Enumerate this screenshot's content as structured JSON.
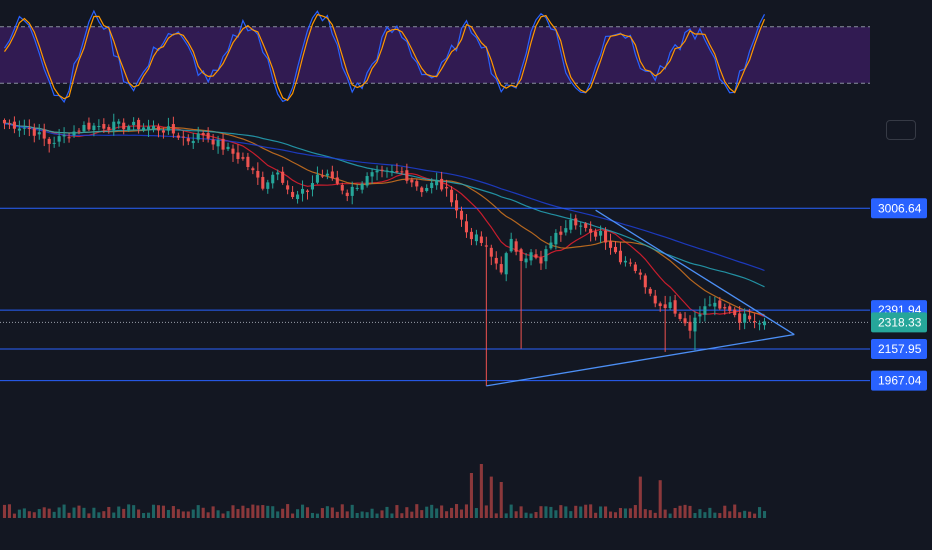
{
  "colors": {
    "background": "#131722",
    "bull": "#26a69a",
    "bear": "#ef5350",
    "level_line": "#2962ff",
    "trendline": "#4c8ff5",
    "stoch_k": "#2962ff",
    "stoch_d": "#ff9800",
    "stoch_band": "#4a1f7a",
    "ma_fast": "#e91e2f",
    "ma_mid": "#d4761f",
    "ma_slow": "#26a6b8",
    "ma_long": "#1e3fd6",
    "current_price_bg": "#26a69a",
    "level_label_bg": "#2962ff"
  },
  "chart_data": {
    "type": "candlestick",
    "price_axis": {
      "ylim": [
        1880,
        3630
      ]
    },
    "levels": [
      {
        "name": "resistance-3006",
        "value": 3006.64,
        "label": "3006.64"
      },
      {
        "name": "resistance-2391",
        "value": 2391.94,
        "label": "2391.94"
      },
      {
        "name": "support-2157",
        "value": 2157.95,
        "label": "2157.95"
      },
      {
        "name": "support-1967",
        "value": 1967.04,
        "label": "1967.04"
      }
    ],
    "current_price": {
      "value": 2318.33,
      "label": "2318.33"
    },
    "anchors": [
      [
        0,
        3520
      ],
      [
        5,
        3490
      ],
      [
        9,
        3400
      ],
      [
        12,
        3440
      ],
      [
        16,
        3500
      ],
      [
        20,
        3505
      ],
      [
        25,
        3505
      ],
      [
        30,
        3495
      ],
      [
        33,
        3475
      ],
      [
        37,
        3420
      ],
      [
        40,
        3455
      ],
      [
        44,
        3375
      ],
      [
        48,
        3300
      ],
      [
        52,
        3145
      ],
      [
        55,
        3245
      ],
      [
        58,
        3065
      ],
      [
        61,
        3115
      ],
      [
        63,
        3210
      ],
      [
        66,
        3190
      ],
      [
        69,
        3095
      ],
      [
        71,
        3150
      ],
      [
        74,
        3205
      ],
      [
        77,
        3215
      ],
      [
        80,
        3225
      ],
      [
        84,
        3120
      ],
      [
        87,
        3165
      ],
      [
        90,
        3070
      ],
      [
        93,
        2865
      ],
      [
        96,
        2800
      ],
      [
        98,
        2710
      ],
      [
        100,
        2640
      ],
      [
        102,
        2800
      ],
      [
        104,
        2715
      ],
      [
        106,
        2730
      ],
      [
        108,
        2665
      ],
      [
        110,
        2815
      ],
      [
        112,
        2865
      ],
      [
        114,
        2960
      ],
      [
        116,
        2900
      ],
      [
        118,
        2840
      ],
      [
        120,
        2870
      ],
      [
        122,
        2780
      ],
      [
        124,
        2705
      ],
      [
        126,
        2690
      ],
      [
        128,
        2590
      ],
      [
        130,
        2510
      ],
      [
        132,
        2410
      ],
      [
        134,
        2445
      ],
      [
        136,
        2340
      ],
      [
        138,
        2295
      ],
      [
        140,
        2370
      ],
      [
        142,
        2435
      ],
      [
        144,
        2390
      ],
      [
        146,
        2400
      ],
      [
        148,
        2340
      ],
      [
        150,
        2360
      ],
      [
        152,
        2330
      ],
      [
        153,
        2335
      ]
    ],
    "wicks": [
      {
        "index": 97,
        "low": 1935
      },
      {
        "index": 104,
        "low": 2160
      },
      {
        "index": 133,
        "low": 2140
      },
      {
        "index": 139,
        "low": 2150
      }
    ],
    "trendlines": [
      {
        "name": "lower-trendline",
        "points": [
          [
            97,
            1935
          ],
          [
            159,
            2245
          ]
        ]
      },
      {
        "name": "upper-trendline",
        "points": [
          [
            119,
            2995
          ],
          [
            159,
            2245
          ]
        ]
      }
    ],
    "moving_averages": [
      {
        "key": "ma_fast",
        "period": 10
      },
      {
        "key": "ma_mid",
        "period": 21
      },
      {
        "key": "ma_slow",
        "period": 40
      },
      {
        "key": "ma_long",
        "period": 80
      }
    ],
    "stochastic": {
      "upper": 80,
      "lower": 20
    },
    "volume": {
      "base": 60,
      "spikes": [
        [
          94,
          250
        ],
        [
          96,
          300
        ],
        [
          98,
          230
        ],
        [
          100,
          200
        ],
        [
          128,
          230
        ],
        [
          132,
          210
        ]
      ]
    }
  }
}
